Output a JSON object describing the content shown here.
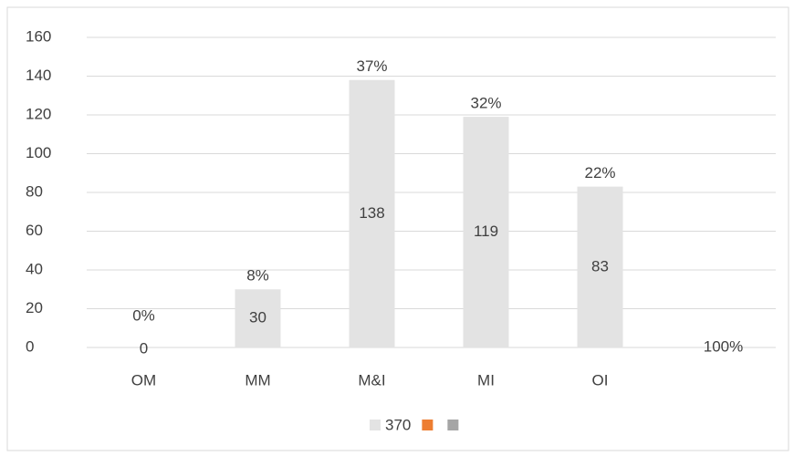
{
  "chart_data": {
    "type": "bar",
    "categories": [
      "OM",
      "MM",
      "M&I",
      "MI",
      "OI",
      null
    ],
    "series": [
      {
        "name": "370",
        "color": "#e3e3e3",
        "values": [
          0,
          30,
          138,
          119,
          83,
          null
        ]
      },
      {
        "color": "#ed7d31",
        "values": [
          0,
          8,
          37,
          32,
          22,
          100
        ],
        "value_labels": [
          "0%",
          "8%",
          "37%",
          "32%",
          "22%",
          "100%"
        ]
      },
      {
        "color": "#a5a5a5"
      }
    ],
    "ylim": [
      0,
      160
    ],
    "yticks": [
      0,
      20,
      40,
      60,
      80,
      100,
      120,
      140,
      160
    ],
    "grid": true,
    "legend": "bottom"
  }
}
